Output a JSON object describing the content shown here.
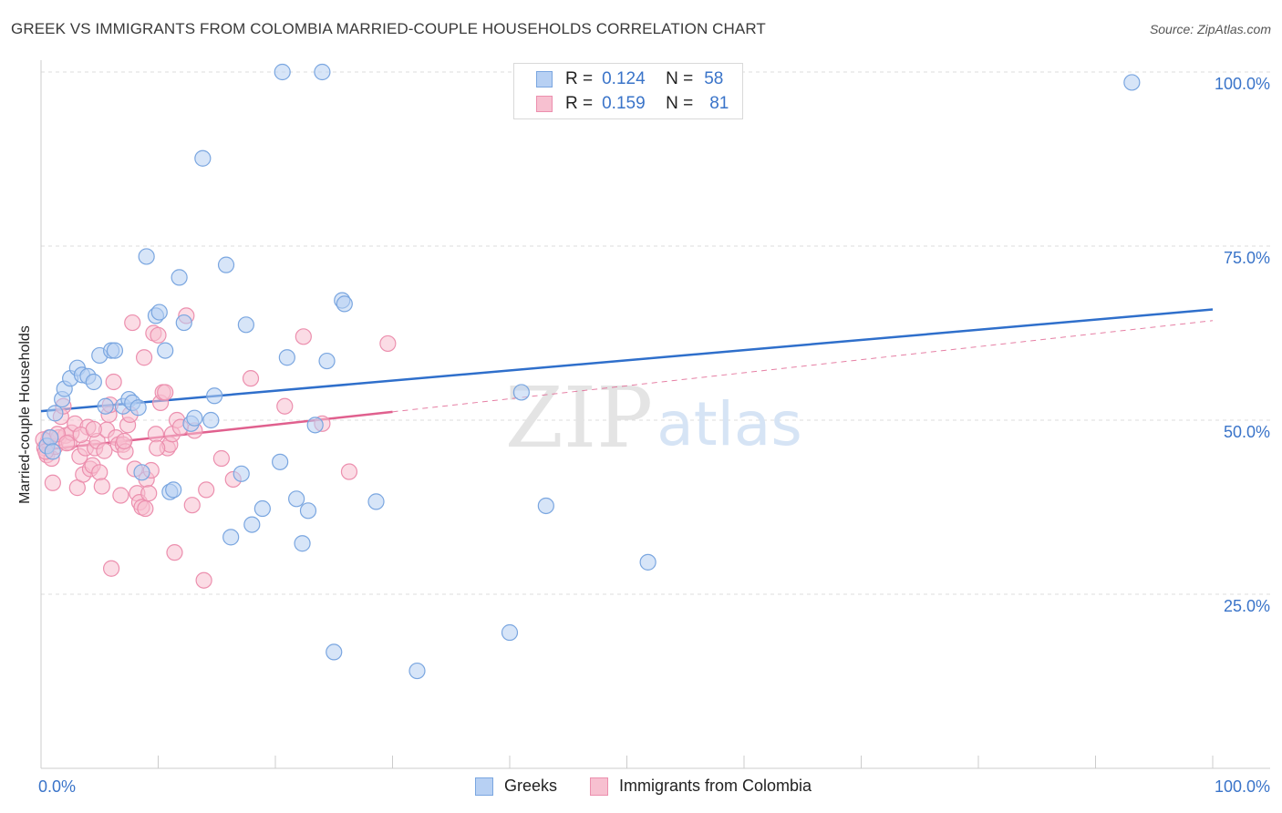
{
  "header": {
    "title": "GREEK VS IMMIGRANTS FROM COLOMBIA MARRIED-COUPLE HOUSEHOLDS CORRELATION CHART",
    "source": "Source: ZipAtlas.com"
  },
  "watermark": {
    "zip": "ZIP",
    "atlas": "atlas"
  },
  "colors": {
    "greeks_fill": "#b7d0f3",
    "greeks_stroke": "#7aa6e0",
    "greeks_line": "#2f6fcb",
    "colombia_fill": "#f7c0d0",
    "colombia_stroke": "#ec8fae",
    "colombia_line": "#e0608e",
    "tick_label": "#3a74c9",
    "grid": "#dcdcdc"
  },
  "legend": {
    "rows": [
      {
        "r_label": "R =",
        "r_value": "0.124",
        "n_label": "N =",
        "n_value": "58"
      },
      {
        "r_label": "R =",
        "r_value": "0.159",
        "n_label": "N =",
        "n_value": "81"
      }
    ]
  },
  "bottom_legend": [
    "Greeks",
    "Immigrants from Colombia"
  ],
  "chart_data": {
    "type": "scatter",
    "title": "GREEK VS IMMIGRANTS FROM COLOMBIA MARRIED-COUPLE HOUSEHOLDS CORRELATION CHART",
    "xlabel": "",
    "ylabel": "Married-couple Households",
    "xlim": [
      0,
      100
    ],
    "ylim": [
      0,
      102
    ],
    "x_tick_labels": [
      "0.0%",
      "100.0%"
    ],
    "y_ticks": [
      25,
      50,
      75,
      100
    ],
    "y_tick_labels": [
      "25.0%",
      "50.0%",
      "75.0%",
      "100.0%"
    ],
    "grid": true,
    "legend_position": "top-center",
    "series": [
      {
        "name": "Greeks",
        "r": 0.124,
        "n": 58,
        "trend": {
          "x": [
            0,
            100
          ],
          "y": [
            51.3,
            65.9
          ],
          "style": "solid"
        },
        "points": [
          [
            0.5,
            46.3
          ],
          [
            0.8,
            47.5
          ],
          [
            1.0,
            45.5
          ],
          [
            1.2,
            51.0
          ],
          [
            1.8,
            53.0
          ],
          [
            2.0,
            54.5
          ],
          [
            2.5,
            56.0
          ],
          [
            3.1,
            57.5
          ],
          [
            3.5,
            56.5
          ],
          [
            4.0,
            56.3
          ],
          [
            4.5,
            55.5
          ],
          [
            5.0,
            59.3
          ],
          [
            5.5,
            52.0
          ],
          [
            6.0,
            60.0
          ],
          [
            6.3,
            60.0
          ],
          [
            7.0,
            52.0
          ],
          [
            7.5,
            53.0
          ],
          [
            7.8,
            52.5
          ],
          [
            8.3,
            51.8
          ],
          [
            8.6,
            42.5
          ],
          [
            9.0,
            73.5
          ],
          [
            9.8,
            65.0
          ],
          [
            10.1,
            65.5
          ],
          [
            10.6,
            60.0
          ],
          [
            11.0,
            39.7
          ],
          [
            11.3,
            40.0
          ],
          [
            11.8,
            70.5
          ],
          [
            12.2,
            64.0
          ],
          [
            12.8,
            49.5
          ],
          [
            13.1,
            50.3
          ],
          [
            13.8,
            87.6
          ],
          [
            14.5,
            50.0
          ],
          [
            14.8,
            53.5
          ],
          [
            15.8,
            72.3
          ],
          [
            16.2,
            33.2
          ],
          [
            17.1,
            42.3
          ],
          [
            17.5,
            63.7
          ],
          [
            18.0,
            35.0
          ],
          [
            18.9,
            37.3
          ],
          [
            20.4,
            44.0
          ],
          [
            20.6,
            100
          ],
          [
            21.0,
            59.0
          ],
          [
            21.8,
            38.7
          ],
          [
            22.3,
            32.3
          ],
          [
            22.8,
            37.0
          ],
          [
            23.4,
            49.3
          ],
          [
            24.0,
            100
          ],
          [
            24.4,
            58.5
          ],
          [
            25.0,
            16.7
          ],
          [
            25.7,
            67.2
          ],
          [
            25.9,
            66.7
          ],
          [
            28.6,
            38.3
          ],
          [
            32.1,
            14.0
          ],
          [
            40.0,
            19.5
          ],
          [
            41.0,
            54.0
          ],
          [
            43.1,
            37.7
          ],
          [
            51.8,
            29.6
          ],
          [
            93.1,
            98.5
          ]
        ]
      },
      {
        "name": "Immigrants from Colombia",
        "r": 0.159,
        "n": 81,
        "trend": {
          "x": [
            0,
            30
          ],
          "y": [
            45.7,
            51.2
          ],
          "style": "solid",
          "extended_x": [
            30,
            100
          ],
          "extended_y": [
            51.2,
            64.3
          ],
          "extended_style": "dashed"
        },
        "points": [
          [
            0.3,
            46.0
          ],
          [
            0.5,
            45.0
          ],
          [
            0.6,
            47.0
          ],
          [
            0.7,
            47.5
          ],
          [
            0.9,
            44.5
          ],
          [
            1.0,
            41.0
          ],
          [
            1.2,
            46.2
          ],
          [
            1.5,
            47.5
          ],
          [
            1.7,
            50.5
          ],
          [
            1.9,
            52.0
          ],
          [
            2.1,
            47.8
          ],
          [
            2.4,
            46.8
          ],
          [
            2.6,
            48.2
          ],
          [
            2.9,
            49.5
          ],
          [
            3.1,
            40.3
          ],
          [
            3.3,
            44.8
          ],
          [
            3.6,
            42.2
          ],
          [
            3.8,
            46.0
          ],
          [
            4.0,
            49.0
          ],
          [
            4.2,
            43.0
          ],
          [
            4.4,
            43.5
          ],
          [
            4.6,
            46.0
          ],
          [
            4.8,
            47.0
          ],
          [
            5.0,
            42.5
          ],
          [
            5.2,
            40.5
          ],
          [
            5.4,
            45.6
          ],
          [
            5.6,
            48.6
          ],
          [
            5.8,
            50.8
          ],
          [
            6.0,
            28.7
          ],
          [
            6.2,
            55.5
          ],
          [
            6.4,
            47.5
          ],
          [
            6.6,
            46.5
          ],
          [
            6.8,
            39.2
          ],
          [
            7.0,
            46.5
          ],
          [
            7.2,
            45.5
          ],
          [
            7.4,
            49.3
          ],
          [
            7.6,
            50.8
          ],
          [
            7.8,
            64.0
          ],
          [
            8.0,
            43.0
          ],
          [
            8.2,
            39.5
          ],
          [
            8.4,
            38.2
          ],
          [
            8.6,
            37.5
          ],
          [
            8.8,
            59.0
          ],
          [
            9.0,
            41.5
          ],
          [
            9.2,
            39.5
          ],
          [
            9.4,
            42.8
          ],
          [
            9.6,
            62.5
          ],
          [
            9.8,
            48.0
          ],
          [
            10.0,
            62.2
          ],
          [
            10.2,
            52.5
          ],
          [
            10.4,
            54.0
          ],
          [
            10.6,
            54.0
          ],
          [
            10.8,
            46.0
          ],
          [
            11.0,
            46.5
          ],
          [
            11.2,
            48.0
          ],
          [
            11.4,
            31.0
          ],
          [
            11.6,
            50.0
          ],
          [
            12.4,
            65.0
          ],
          [
            12.9,
            37.8
          ],
          [
            13.1,
            48.5
          ],
          [
            13.9,
            27.0
          ],
          [
            14.1,
            40.0
          ],
          [
            15.4,
            44.5
          ],
          [
            16.4,
            41.5
          ],
          [
            17.9,
            56.0
          ],
          [
            20.8,
            52.0
          ],
          [
            22.4,
            62.0
          ],
          [
            24.0,
            49.5
          ],
          [
            26.3,
            42.6
          ],
          [
            29.6,
            61.0
          ],
          [
            8.9,
            37.3
          ],
          [
            1.4,
            48.0
          ],
          [
            2.2,
            46.7
          ],
          [
            3.4,
            47.9
          ],
          [
            0.2,
            47.2
          ],
          [
            4.5,
            48.7
          ],
          [
            5.9,
            52.2
          ],
          [
            7.1,
            47.0
          ],
          [
            9.9,
            46.0
          ],
          [
            11.9,
            49.0
          ],
          [
            0.4,
            45.5
          ]
        ]
      }
    ]
  }
}
